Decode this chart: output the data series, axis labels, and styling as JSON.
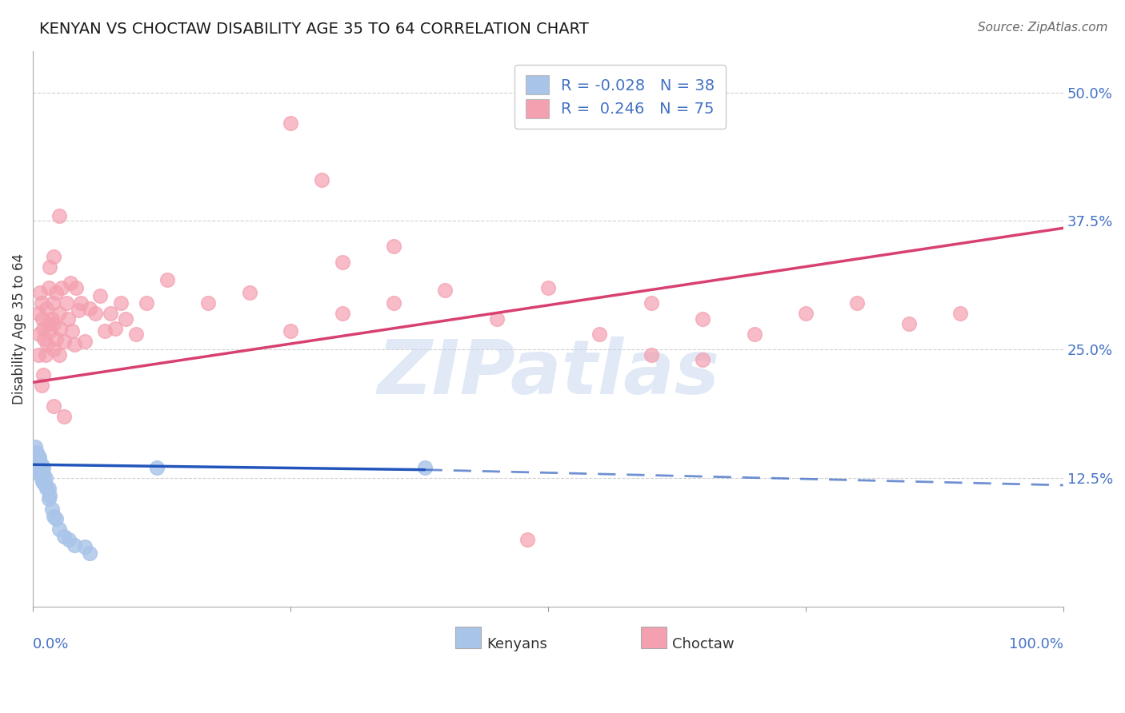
{
  "title": "KENYAN VS CHOCTAW DISABILITY AGE 35 TO 64 CORRELATION CHART",
  "source": "Source: ZipAtlas.com",
  "ylabel": "Disability Age 35 to 64",
  "yticks": [
    0.0,
    0.125,
    0.25,
    0.375,
    0.5
  ],
  "ytick_labels": [
    "",
    "12.5%",
    "25.0%",
    "37.5%",
    "50.0%"
  ],
  "xlim": [
    0.0,
    1.0
  ],
  "ylim": [
    0.0,
    0.54
  ],
  "kenyan_R": -0.028,
  "kenyan_N": 38,
  "choctaw_R": 0.246,
  "choctaw_N": 75,
  "kenyan_color": "#a8c4e8",
  "choctaw_color": "#f4a0b0",
  "kenyan_line_color": "#2255bb",
  "choctaw_line_color": "#d84070",
  "watermark_text": "ZIPatlas",
  "kenyan_x": [
    0.002,
    0.003,
    0.004,
    0.004,
    0.005,
    0.005,
    0.006,
    0.006,
    0.006,
    0.007,
    0.007,
    0.007,
    0.008,
    0.008,
    0.008,
    0.009,
    0.009,
    0.01,
    0.01,
    0.01,
    0.01,
    0.012,
    0.012,
    0.013,
    0.015,
    0.015,
    0.016,
    0.018,
    0.02,
    0.022,
    0.025,
    0.03,
    0.035,
    0.04,
    0.05,
    0.055,
    0.12,
    0.38
  ],
  "kenyan_y": [
    0.155,
    0.148,
    0.142,
    0.15,
    0.135,
    0.145,
    0.132,
    0.138,
    0.145,
    0.128,
    0.135,
    0.14,
    0.125,
    0.13,
    0.138,
    0.122,
    0.128,
    0.12,
    0.125,
    0.13,
    0.135,
    0.118,
    0.125,
    0.115,
    0.105,
    0.115,
    0.108,
    0.095,
    0.088,
    0.085,
    0.075,
    0.068,
    0.065,
    0.06,
    0.058,
    0.052,
    0.135,
    0.135
  ],
  "choctaw_x": [
    0.005,
    0.005,
    0.006,
    0.007,
    0.008,
    0.008,
    0.009,
    0.01,
    0.01,
    0.011,
    0.012,
    0.013,
    0.014,
    0.015,
    0.015,
    0.016,
    0.016,
    0.018,
    0.019,
    0.02,
    0.02,
    0.022,
    0.022,
    0.025,
    0.025,
    0.026,
    0.028,
    0.03,
    0.032,
    0.034,
    0.036,
    0.038,
    0.04,
    0.042,
    0.044,
    0.046,
    0.05,
    0.055,
    0.06,
    0.065,
    0.07,
    0.075,
    0.08,
    0.085,
    0.09,
    0.1,
    0.11,
    0.13,
    0.17,
    0.21,
    0.25,
    0.3,
    0.35,
    0.4,
    0.45,
    0.5,
    0.55,
    0.6,
    0.65,
    0.7,
    0.75,
    0.8,
    0.85,
    0.9,
    0.025,
    0.28,
    0.3,
    0.35,
    0.6,
    0.65,
    0.25,
    0.02,
    0.02,
    0.03,
    0.48
  ],
  "choctaw_y": [
    0.245,
    0.285,
    0.265,
    0.305,
    0.215,
    0.295,
    0.28,
    0.225,
    0.27,
    0.26,
    0.245,
    0.29,
    0.255,
    0.275,
    0.31,
    0.268,
    0.33,
    0.28,
    0.295,
    0.25,
    0.275,
    0.26,
    0.305,
    0.245,
    0.285,
    0.27,
    0.31,
    0.258,
    0.295,
    0.28,
    0.315,
    0.268,
    0.255,
    0.31,
    0.288,
    0.295,
    0.258,
    0.29,
    0.285,
    0.302,
    0.268,
    0.285,
    0.27,
    0.295,
    0.28,
    0.265,
    0.295,
    0.318,
    0.295,
    0.305,
    0.268,
    0.285,
    0.295,
    0.308,
    0.28,
    0.31,
    0.265,
    0.295,
    0.28,
    0.265,
    0.285,
    0.295,
    0.275,
    0.285,
    0.38,
    0.415,
    0.335,
    0.35,
    0.245,
    0.24,
    0.47,
    0.34,
    0.195,
    0.185,
    0.065
  ],
  "kenyan_trendline_x0": 0.0,
  "kenyan_trendline_x_solid_end": 0.38,
  "kenyan_trendline_x1": 1.0,
  "kenyan_trendline_y0": 0.138,
  "kenyan_trendline_y_solid_end": 0.133,
  "kenyan_trendline_y1": 0.118,
  "choctaw_trendline_x0": 0.0,
  "choctaw_trendline_x1": 1.0,
  "choctaw_trendline_y0": 0.218,
  "choctaw_trendline_y1": 0.368
}
